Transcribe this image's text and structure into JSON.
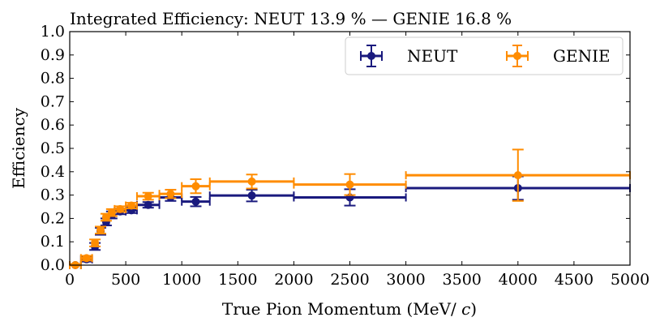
{
  "chart_data": {
    "type": "scatter",
    "title": "Integrated Efficiency: NEUT 13.9 % — GENIE 16.8 %",
    "xlabel": "True Pion Momentum (MeV/c)",
    "ylabel": "Efficiency",
    "xlim": [
      0,
      5000
    ],
    "ylim": [
      0,
      1.0
    ],
    "xticks": [
      0,
      500,
      1000,
      1500,
      2000,
      2500,
      3000,
      3500,
      4000,
      4500,
      5000
    ],
    "yticks": [
      0.0,
      0.1,
      0.2,
      0.3,
      0.4,
      0.5,
      0.6,
      0.7,
      0.8,
      0.9,
      1.0
    ],
    "x_tick_labels": [
      "0",
      "500",
      "1000",
      "1500",
      "2000",
      "2500",
      "3000",
      "3500",
      "4000",
      "4500",
      "5000"
    ],
    "y_tick_labels": [
      "0.0",
      "0.1",
      "0.2",
      "0.3",
      "0.4",
      "0.5",
      "0.6",
      "0.7",
      "0.8",
      "0.9",
      "1.0"
    ],
    "legend_position": "top-right",
    "series": [
      {
        "name": "NEUT",
        "color": "#1a1a7e",
        "points": [
          {
            "x": 50,
            "xlo": 0,
            "xhi": 100,
            "y": 0.0,
            "err": 0.005
          },
          {
            "x": 150,
            "xlo": 100,
            "xhi": 200,
            "y": 0.025,
            "err": 0.01
          },
          {
            "x": 225,
            "xlo": 200,
            "xhi": 250,
            "y": 0.08,
            "err": 0.015
          },
          {
            "x": 275,
            "xlo": 250,
            "xhi": 300,
            "y": 0.145,
            "err": 0.015
          },
          {
            "x": 325,
            "xlo": 300,
            "xhi": 350,
            "y": 0.185,
            "err": 0.015
          },
          {
            "x": 375,
            "xlo": 350,
            "xhi": 400,
            "y": 0.215,
            "err": 0.015
          },
          {
            "x": 450,
            "xlo": 400,
            "xhi": 500,
            "y": 0.23,
            "err": 0.012
          },
          {
            "x": 550,
            "xlo": 500,
            "xhi": 600,
            "y": 0.235,
            "err": 0.012
          },
          {
            "x": 700,
            "xlo": 600,
            "xhi": 800,
            "y": 0.258,
            "err": 0.012
          },
          {
            "x": 900,
            "xlo": 800,
            "xhi": 1000,
            "y": 0.29,
            "err": 0.015
          },
          {
            "x": 1125,
            "xlo": 1000,
            "xhi": 1250,
            "y": 0.272,
            "err": 0.02
          },
          {
            "x": 1625,
            "xlo": 1250,
            "xhi": 2000,
            "y": 0.298,
            "err": 0.025
          },
          {
            "x": 2500,
            "xlo": 2000,
            "xhi": 3000,
            "y": 0.29,
            "err": 0.035
          },
          {
            "x": 4000,
            "xlo": 3000,
            "xhi": 5000,
            "y": 0.33,
            "err": 0.05
          }
        ]
      },
      {
        "name": "GENIE",
        "color": "#ff8c00",
        "points": [
          {
            "x": 50,
            "xlo": 0,
            "xhi": 100,
            "y": 0.0,
            "err": 0.005
          },
          {
            "x": 150,
            "xlo": 100,
            "xhi": 200,
            "y": 0.03,
            "err": 0.01
          },
          {
            "x": 225,
            "xlo": 200,
            "xhi": 250,
            "y": 0.095,
            "err": 0.015
          },
          {
            "x": 275,
            "xlo": 250,
            "xhi": 300,
            "y": 0.15,
            "err": 0.015
          },
          {
            "x": 325,
            "xlo": 300,
            "xhi": 350,
            "y": 0.205,
            "err": 0.015
          },
          {
            "x": 375,
            "xlo": 350,
            "xhi": 400,
            "y": 0.225,
            "err": 0.015
          },
          {
            "x": 450,
            "xlo": 400,
            "xhi": 500,
            "y": 0.24,
            "err": 0.012
          },
          {
            "x": 550,
            "xlo": 500,
            "xhi": 600,
            "y": 0.255,
            "err": 0.012
          },
          {
            "x": 700,
            "xlo": 600,
            "xhi": 800,
            "y": 0.295,
            "err": 0.015
          },
          {
            "x": 900,
            "xlo": 800,
            "xhi": 1000,
            "y": 0.305,
            "err": 0.018
          },
          {
            "x": 1125,
            "xlo": 1000,
            "xhi": 1250,
            "y": 0.338,
            "err": 0.03
          },
          {
            "x": 1625,
            "xlo": 1250,
            "xhi": 2000,
            "y": 0.358,
            "err": 0.03
          },
          {
            "x": 2500,
            "xlo": 2000,
            "xhi": 3000,
            "y": 0.345,
            "err": 0.045
          },
          {
            "x": 4000,
            "xlo": 3000,
            "xhi": 5000,
            "y": 0.385,
            "err": 0.11
          }
        ]
      }
    ]
  }
}
